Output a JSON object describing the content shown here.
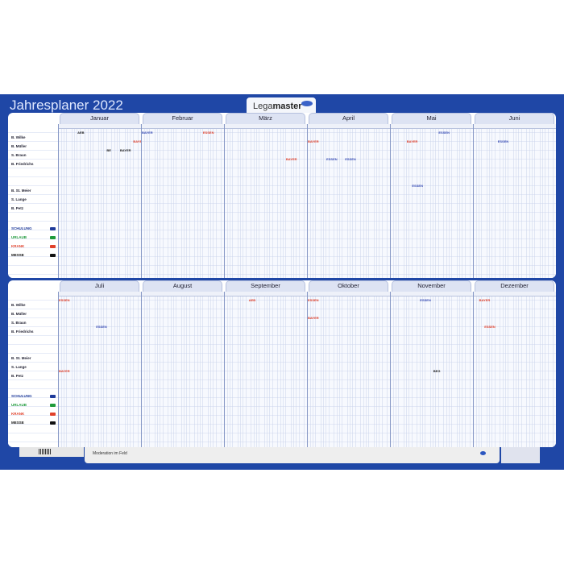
{
  "header": {
    "title": "Jahresplaner 2022",
    "brand_light": "Lega",
    "brand_bold": "master"
  },
  "halves": [
    {
      "months": [
        "Januar",
        "Februar",
        "März",
        "April",
        "Mai",
        "Juni"
      ]
    },
    {
      "months": [
        "Juli",
        "August",
        "September",
        "Oktober",
        "November",
        "Dezember"
      ]
    }
  ],
  "people": [
    "B. Wilke",
    "B. Müller",
    "S. Braun",
    "B. Friedrichs",
    "",
    "",
    "B. St. Meier",
    "S. Lange",
    "B. Petz"
  ],
  "legend": [
    {
      "label": "SCHULUNG",
      "color": "#1e3a9a"
    },
    {
      "label": "URLAUB",
      "color": "#1e9a3a"
    },
    {
      "label": "KRANK",
      "color": "#e0402a"
    },
    {
      "label": "MESSE",
      "color": "#111111"
    }
  ],
  "entries": [
    {
      "half": 0,
      "month": 0,
      "day": 8,
      "row": 0,
      "text": "AEB",
      "color": "#222222"
    },
    {
      "half": 0,
      "month": 0,
      "day": 19,
      "row": 2,
      "text": "BE",
      "color": "#222222"
    },
    {
      "half": 0,
      "month": 0,
      "day": 24,
      "row": 2,
      "text": "BAYER",
      "color": "#222222"
    },
    {
      "half": 0,
      "month": 0,
      "day": 29,
      "row": 1,
      "text": "BAYER",
      "color": "#e0402a"
    },
    {
      "half": 0,
      "month": 1,
      "day": 1,
      "row": 0,
      "text": "BAYER",
      "color": "#3b4fb5"
    },
    {
      "half": 0,
      "month": 1,
      "day": 24,
      "row": 0,
      "text": "ESSEN",
      "color": "#e0402a"
    },
    {
      "half": 0,
      "month": 2,
      "day": 24,
      "row": 3,
      "text": "BAYER",
      "color": "#e0402a"
    },
    {
      "half": 0,
      "month": 3,
      "day": 1,
      "row": 1,
      "text": "BAYER",
      "color": "#e0402a"
    },
    {
      "half": 0,
      "month": 3,
      "day": 8,
      "row": 3,
      "text": "ESSEN",
      "color": "#3b4fb5"
    },
    {
      "half": 0,
      "month": 3,
      "day": 15,
      "row": 3,
      "text": "ESSEN",
      "color": "#3b4fb5"
    },
    {
      "half": 0,
      "month": 4,
      "day": 7,
      "row": 1,
      "text": "BAYER",
      "color": "#e0402a"
    },
    {
      "half": 0,
      "month": 4,
      "day": 9,
      "row": 6,
      "text": "ESSEN",
      "color": "#3b4fb5"
    },
    {
      "half": 0,
      "month": 4,
      "day": 19,
      "row": 0,
      "text": "ESSEN",
      "color": "#3b4fb5"
    },
    {
      "half": 0,
      "month": 5,
      "day": 10,
      "row": 1,
      "text": "ESSEN",
      "color": "#3b4fb5"
    },
    {
      "half": 1,
      "month": 0,
      "day": 1,
      "row": 0,
      "text": "ESSEN",
      "color": "#e0402a"
    },
    {
      "half": 1,
      "month": 0,
      "day": 15,
      "row": 3,
      "text": "ESSEN",
      "color": "#3b4fb5"
    },
    {
      "half": 1,
      "month": 0,
      "day": 1,
      "row": 8,
      "text": "BAYER",
      "color": "#e0402a"
    },
    {
      "half": 1,
      "month": 2,
      "day": 10,
      "row": 0,
      "text": "AEB",
      "color": "#e0402a"
    },
    {
      "half": 1,
      "month": 3,
      "day": 1,
      "row": 0,
      "text": "ESSEN",
      "color": "#e0402a"
    },
    {
      "half": 1,
      "month": 3,
      "day": 1,
      "row": 2,
      "text": "BAYER",
      "color": "#e0402a"
    },
    {
      "half": 1,
      "month": 4,
      "day": 12,
      "row": 0,
      "text": "ESSEN",
      "color": "#3b4fb5"
    },
    {
      "half": 1,
      "month": 4,
      "day": 17,
      "row": 8,
      "text": "BEG",
      "color": "#222222"
    },
    {
      "half": 1,
      "month": 5,
      "day": 3,
      "row": 0,
      "text": "BAYER",
      "color": "#e0402a"
    },
    {
      "half": 1,
      "month": 5,
      "day": 5,
      "row": 3,
      "text": "ESSEN",
      "color": "#e0402a"
    }
  ],
  "footer": {
    "note": "Moderation im Feld"
  }
}
